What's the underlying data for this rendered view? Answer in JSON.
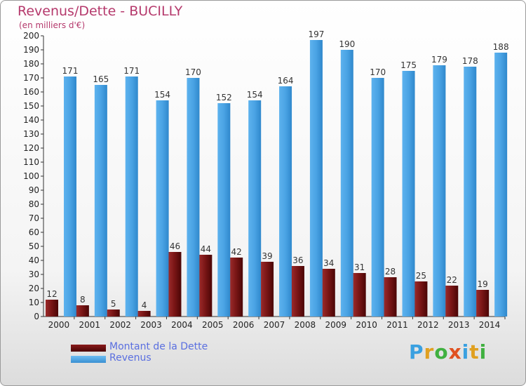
{
  "header": {
    "title": "Revenus/Dette - BUCILLY",
    "subtitle": "(en milliers d'€)"
  },
  "legend": {
    "items": [
      {
        "label": "Montant de la Dette",
        "color": "#6b0d0d"
      },
      {
        "label": "Revenus",
        "color": "#4aa3e4"
      }
    ]
  },
  "logo": {
    "text": "Proxiti"
  },
  "chart_data": {
    "type": "bar",
    "categories": [
      "2000",
      "2001",
      "2002",
      "2003",
      "2004",
      "2005",
      "2006",
      "2007",
      "2008",
      "2009",
      "2010",
      "2011",
      "2012",
      "2013",
      "2014"
    ],
    "series": [
      {
        "name": "Montant de la Dette",
        "color": "#6b0d0d",
        "values": [
          12,
          8,
          5,
          4,
          46,
          44,
          42,
          39,
          36,
          34,
          31,
          28,
          25,
          22,
          19
        ]
      },
      {
        "name": "Revenus",
        "color": "#4aa3e4",
        "values": [
          171,
          165,
          171,
          154,
          170,
          152,
          154,
          164,
          197,
          190,
          170,
          175,
          179,
          178,
          188
        ]
      }
    ],
    "title": "Revenus/Dette - BUCILLY",
    "ylabel": "(en milliers d'€)",
    "ylim": [
      0,
      200
    ],
    "ytick_step": 10,
    "grid": false,
    "legend_position": "bottom-left"
  }
}
